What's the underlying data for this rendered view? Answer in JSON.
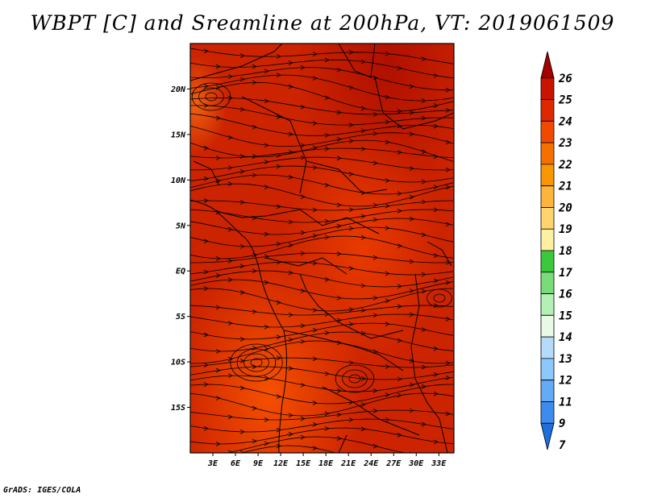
{
  "title": "WBPT [C] and Sreamline at 200hPa, VT: 2019061509",
  "footer": "GrADS: IGES/COLA",
  "map": {
    "lon_ticks": [
      "3E",
      "6E",
      "9E",
      "12E",
      "15E",
      "18E",
      "21E",
      "24E",
      "27E",
      "30E",
      "33E"
    ],
    "lon_values": [
      3,
      6,
      9,
      12,
      15,
      18,
      21,
      24,
      27,
      30,
      33
    ],
    "lat_ticks": [
      "20N",
      "15N",
      "10N",
      "5N",
      "EQ",
      "5S",
      "10S",
      "15S"
    ],
    "lat_values": [
      20,
      15,
      10,
      5,
      0,
      -5,
      -10,
      -15
    ],
    "lon_range": [
      0,
      35
    ],
    "lat_range": [
      -20,
      25
    ]
  },
  "colorbar": {
    "labels": [
      "26",
      "25",
      "24",
      "23",
      "22",
      "21",
      "20",
      "19",
      "18",
      "17",
      "16",
      "15",
      "14",
      "13",
      "12",
      "11",
      "9",
      "7"
    ],
    "colors": [
      "#a50000",
      "#c81400",
      "#e02800",
      "#f04a00",
      "#f57000",
      "#fa9600",
      "#fdb43c",
      "#fdd46e",
      "#fdf0a0",
      "#3cc83c",
      "#78dc78",
      "#b4f0b4",
      "#e6fae6",
      "#b4dcfa",
      "#8cc8fa",
      "#64aaf5",
      "#3c8cf0",
      "#1e6edc"
    ]
  }
}
